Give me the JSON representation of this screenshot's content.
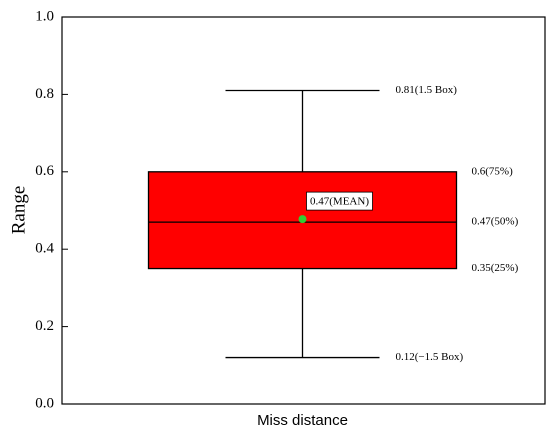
{
  "chart_data": {
    "type": "box",
    "ylabel": "Range",
    "categories": [
      "Miss distance"
    ],
    "ylim": [
      0,
      1
    ],
    "yticks": [
      {
        "value": 0,
        "label": "0.0"
      },
      0.2,
      0.4,
      0.6,
      0.8,
      {
        "value": 1,
        "label": "1.0"
      }
    ],
    "series": [
      {
        "color": "#ff0000",
        "mean_color": "#33cc33",
        "whislo": 0.12,
        "q1": 0.35,
        "med": 0.47,
        "q3": 0.6,
        "whishi": 0.81,
        "mean": 0.47,
        "value_labels": {
          "whishi": "0.81(1.5 Box)",
          "q3": "0.6(75%)",
          "med": "0.47(50%)",
          "q1": "0.35(25%)",
          "whislo": "0.12(−1.5 Box)",
          "mean": "0.47(MEAN)"
        }
      }
    ]
  }
}
